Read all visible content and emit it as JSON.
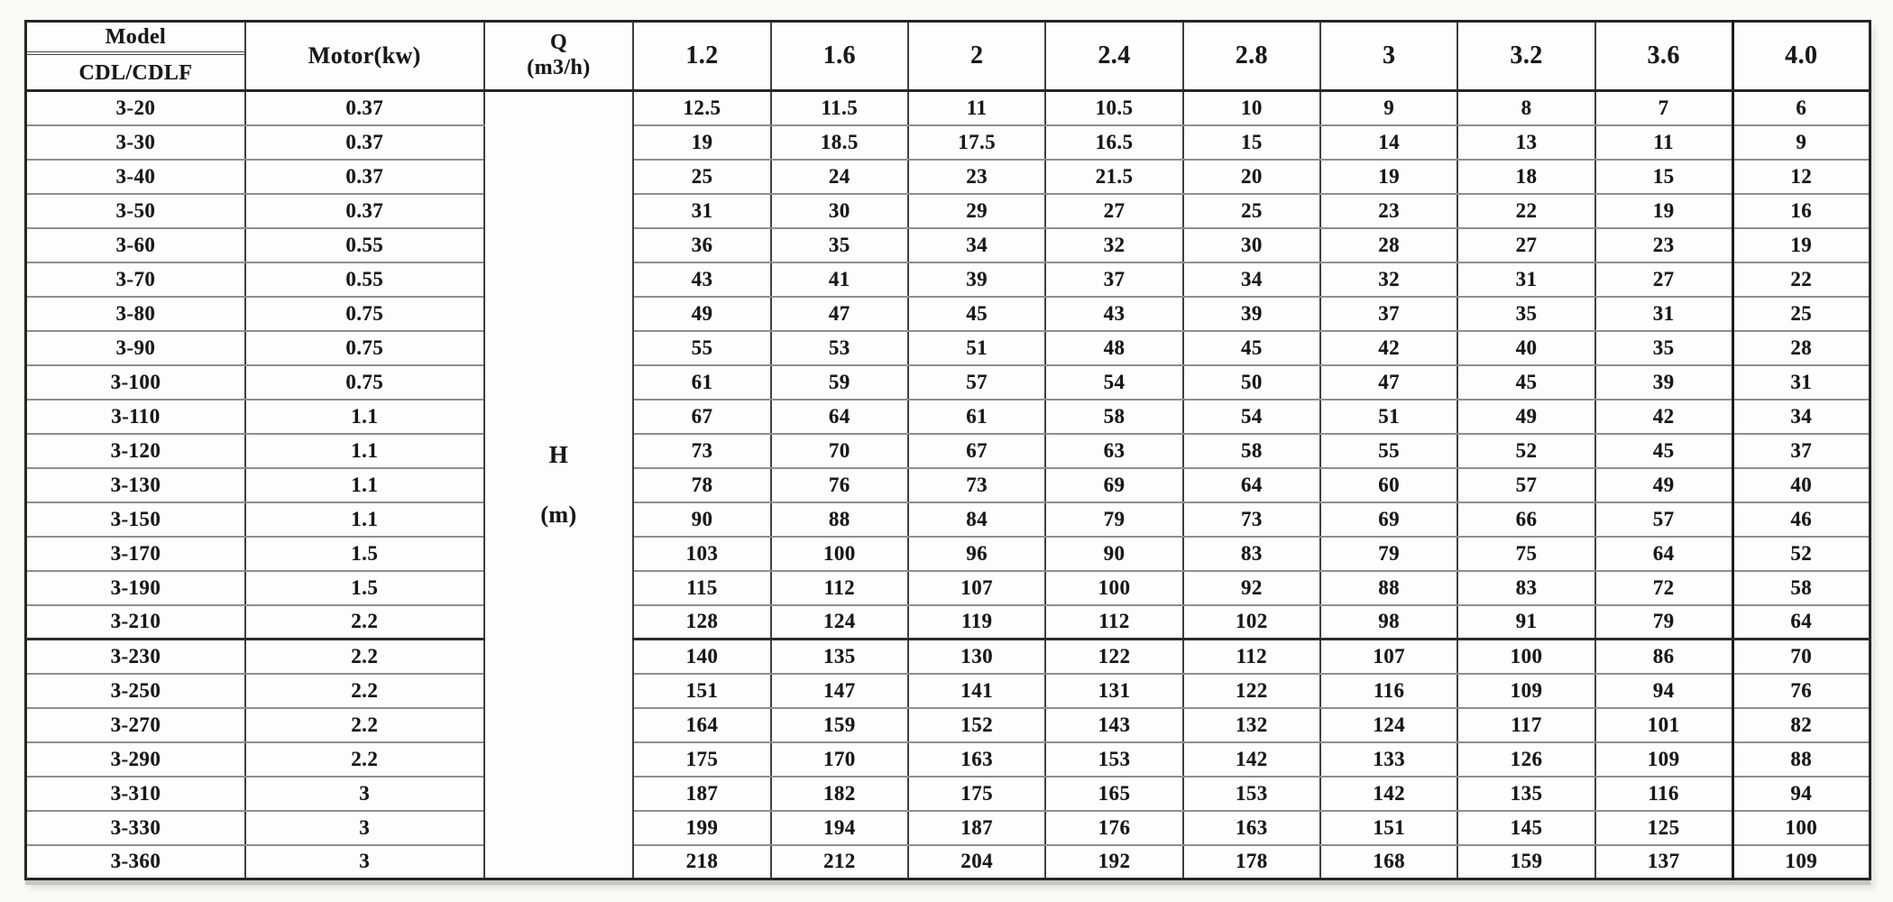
{
  "table": {
    "header": {
      "model_line1": "Model",
      "model_line2": "CDL/CDLF",
      "motor": "Motor(kw)",
      "q_line1": "Q",
      "q_line2": "(m3/h)",
      "flow_columns": [
        "1.2",
        "1.6",
        "2",
        "2.4",
        "2.8",
        "3",
        "3.2",
        "3.6",
        "4.0"
      ]
    },
    "head_unit": {
      "line1": "H",
      "line2": "(m)"
    },
    "rows": [
      {
        "model": "3-20",
        "motor": "0.37",
        "values": [
          "12.5",
          "11.5",
          "11",
          "10.5",
          "10",
          "9",
          "8",
          "7",
          "6"
        ]
      },
      {
        "model": "3-30",
        "motor": "0.37",
        "values": [
          "19",
          "18.5",
          "17.5",
          "16.5",
          "15",
          "14",
          "13",
          "11",
          "9"
        ]
      },
      {
        "model": "3-40",
        "motor": "0.37",
        "values": [
          "25",
          "24",
          "23",
          "21.5",
          "20",
          "19",
          "18",
          "15",
          "12"
        ]
      },
      {
        "model": "3-50",
        "motor": "0.37",
        "values": [
          "31",
          "30",
          "29",
          "27",
          "25",
          "23",
          "22",
          "19",
          "16"
        ]
      },
      {
        "model": "3-60",
        "motor": "0.55",
        "values": [
          "36",
          "35",
          "34",
          "32",
          "30",
          "28",
          "27",
          "23",
          "19"
        ]
      },
      {
        "model": "3-70",
        "motor": "0.55",
        "values": [
          "43",
          "41",
          "39",
          "37",
          "34",
          "32",
          "31",
          "27",
          "22"
        ]
      },
      {
        "model": "3-80",
        "motor": "0.75",
        "values": [
          "49",
          "47",
          "45",
          "43",
          "39",
          "37",
          "35",
          "31",
          "25"
        ]
      },
      {
        "model": "3-90",
        "motor": "0.75",
        "values": [
          "55",
          "53",
          "51",
          "48",
          "45",
          "42",
          "40",
          "35",
          "28"
        ]
      },
      {
        "model": "3-100",
        "motor": "0.75",
        "values": [
          "61",
          "59",
          "57",
          "54",
          "50",
          "47",
          "45",
          "39",
          "31"
        ]
      },
      {
        "model": "3-110",
        "motor": "1.1",
        "values": [
          "67",
          "64",
          "61",
          "58",
          "54",
          "51",
          "49",
          "42",
          "34"
        ]
      },
      {
        "model": "3-120",
        "motor": "1.1",
        "values": [
          "73",
          "70",
          "67",
          "63",
          "58",
          "55",
          "52",
          "45",
          "37"
        ]
      },
      {
        "model": "3-130",
        "motor": "1.1",
        "values": [
          "78",
          "76",
          "73",
          "69",
          "64",
          "60",
          "57",
          "49",
          "40"
        ]
      },
      {
        "model": "3-150",
        "motor": "1.1",
        "values": [
          "90",
          "88",
          "84",
          "79",
          "73",
          "69",
          "66",
          "57",
          "46"
        ]
      },
      {
        "model": "3-170",
        "motor": "1.5",
        "values": [
          "103",
          "100",
          "96",
          "90",
          "83",
          "79",
          "75",
          "64",
          "52"
        ]
      },
      {
        "model": "3-190",
        "motor": "1.5",
        "values": [
          "115",
          "112",
          "107",
          "100",
          "92",
          "88",
          "83",
          "72",
          "58"
        ]
      },
      {
        "model": "3-210",
        "motor": "2.2",
        "values": [
          "128",
          "124",
          "119",
          "112",
          "102",
          "98",
          "91",
          "79",
          "64"
        ],
        "group_break_after": true
      },
      {
        "model": "3-230",
        "motor": "2.2",
        "values": [
          "140",
          "135",
          "130",
          "122",
          "112",
          "107",
          "100",
          "86",
          "70"
        ]
      },
      {
        "model": "3-250",
        "motor": "2.2",
        "values": [
          "151",
          "147",
          "141",
          "131",
          "122",
          "116",
          "109",
          "94",
          "76"
        ]
      },
      {
        "model": "3-270",
        "motor": "2.2",
        "values": [
          "164",
          "159",
          "152",
          "143",
          "132",
          "124",
          "117",
          "101",
          "82"
        ]
      },
      {
        "model": "3-290",
        "motor": "2.2",
        "values": [
          "175",
          "170",
          "163",
          "153",
          "142",
          "133",
          "126",
          "109",
          "88"
        ]
      },
      {
        "model": "3-310",
        "motor": "3",
        "values": [
          "187",
          "182",
          "175",
          "165",
          "153",
          "142",
          "135",
          "116",
          "94"
        ]
      },
      {
        "model": "3-330",
        "motor": "3",
        "values": [
          "199",
          "194",
          "187",
          "176",
          "163",
          "151",
          "145",
          "125",
          "100"
        ]
      },
      {
        "model": "3-360",
        "motor": "3",
        "values": [
          "218",
          "212",
          "204",
          "192",
          "178",
          "168",
          "159",
          "137",
          "109"
        ]
      }
    ]
  }
}
